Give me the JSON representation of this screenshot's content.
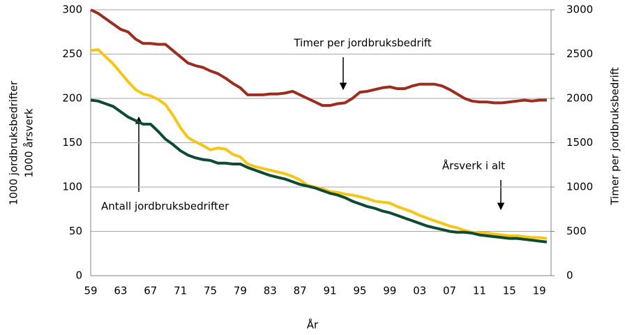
{
  "chart_data": {
    "type": "line",
    "xlabel": "År",
    "ylabel": [
      "1000 jordbruksbedrifter",
      "1000 årsverk"
    ],
    "y2label": "Timer per jordbruksbedrift",
    "categories": [
      "59",
      null,
      null,
      null,
      "63",
      null,
      null,
      null,
      "67",
      null,
      null,
      null,
      "71",
      null,
      null,
      null,
      "75",
      null,
      null,
      null,
      "79",
      null,
      null,
      null,
      "83",
      null,
      null,
      null,
      "87",
      null,
      null,
      null,
      "91",
      null,
      null,
      null,
      "95",
      null,
      null,
      null,
      "99",
      null,
      null,
      null,
      "03",
      null,
      null,
      null,
      "07",
      null,
      null,
      null,
      "11",
      null,
      null,
      null,
      "15",
      null,
      null,
      null,
      "19",
      null
    ],
    "series": [
      {
        "name": "Timer per jordbruksbedrift",
        "color": "#9b2d1f",
        "axis": "y2",
        "values": [
          3000,
          2960,
          2900,
          2840,
          2780,
          2750,
          2670,
          2620,
          2620,
          2610,
          2610,
          2540,
          2470,
          2400,
          2370,
          2350,
          2310,
          2280,
          2230,
          2170,
          2120,
          2040,
          2040,
          2040,
          2050,
          2050,
          2060,
          2080,
          2040,
          2000,
          1960,
          1920,
          1920,
          1940,
          1950,
          2000,
          2070,
          2080,
          2100,
          2120,
          2130,
          2110,
          2110,
          2140,
          2160,
          2160,
          2160,
          2140,
          2100,
          2050,
          2000,
          1970,
          1960,
          1960,
          1950,
          1950,
          1960,
          1970,
          1980,
          1970,
          1980,
          1980
        ]
      },
      {
        "name": "Årsverk i alt",
        "color": "#f5c518",
        "values": [
          254,
          255,
          247,
          239,
          229,
          219,
          210,
          205,
          203,
          199,
          193,
          181,
          167,
          156,
          151,
          147,
          142,
          144,
          143,
          137,
          134,
          126,
          123,
          121,
          119,
          117,
          115,
          112,
          108,
          102,
          100,
          98,
          95,
          94,
          92,
          91,
          89,
          87,
          84,
          83,
          82,
          78,
          75,
          72,
          68,
          65,
          62,
          59,
          56,
          54,
          51,
          49,
          48,
          48,
          47,
          46,
          45,
          45,
          44,
          43,
          43,
          42
        ]
      },
      {
        "name": "Antall jordbruksbedrifter",
        "color": "#0f4a33",
        "values": [
          198,
          197,
          194,
          191,
          185,
          179,
          175,
          171,
          171,
          163,
          154,
          148,
          141,
          136,
          133,
          131,
          130,
          127,
          127,
          126,
          126,
          122,
          119,
          116,
          113,
          111,
          109,
          106,
          103,
          101,
          99,
          96,
          93,
          91,
          88,
          84,
          81,
          78,
          76,
          73,
          71,
          68,
          65,
          62,
          59,
          56,
          54,
          52,
          50,
          49,
          49,
          48,
          46,
          45,
          44,
          43,
          42,
          42,
          41,
          40,
          39,
          38
        ]
      }
    ],
    "ylim": [
      0,
      300
    ],
    "yticks": [
      0,
      50,
      100,
      150,
      200,
      250,
      300
    ],
    "y2lim": [
      0,
      3000
    ],
    "y2ticks": [
      0,
      500,
      1000,
      1500,
      2000,
      2500,
      3000
    ],
    "grid": true
  }
}
